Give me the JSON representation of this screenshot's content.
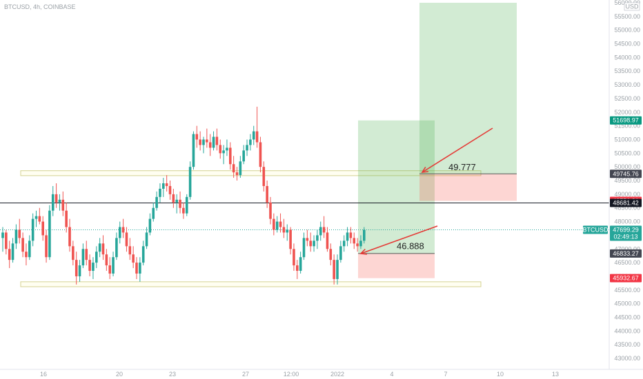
{
  "header": {
    "symbol_line": "BTCUSD, 4h, COINBASE"
  },
  "axis": {
    "currency": "USD"
  },
  "chart_data": {
    "type": "candlestick",
    "title": "",
    "ylim": [
      42800,
      56000
    ],
    "y_ticks": [
      43000,
      43500,
      44000,
      44500,
      45000,
      45500,
      46000,
      46500,
      47000,
      47500,
      48000,
      48500,
      49000,
      49500,
      50000,
      50500,
      51000,
      51500,
      52000,
      52500,
      53000,
      53500,
      54000,
      54500,
      55000,
      55500,
      56000
    ],
    "x_tick_labels": [
      "16",
      "20",
      "23",
      "27",
      "12:00",
      "2022",
      "4",
      "7",
      "10",
      "13"
    ],
    "price_labels": [
      {
        "id": "target",
        "text": "51698.97",
        "price": 51698.97,
        "color": "#089981"
      },
      {
        "id": "level-49745",
        "text": "49745.76",
        "price": 49745.76,
        "color": "#434651"
      },
      {
        "id": "stop-upper",
        "text": "48756.81",
        "price": 48756.81,
        "color": "#f23645"
      },
      {
        "id": "hline",
        "text": "48681.42",
        "price": 48681.42,
        "color": "#131722"
      },
      {
        "id": "current",
        "text": "47699.29",
        "sub": "02:49:13",
        "price": 47699.29,
        "color": "#26a69a"
      },
      {
        "id": "entry",
        "text": "46833.27",
        "price": 46833.27,
        "color": "#434651"
      },
      {
        "id": "stop-lower",
        "text": "45932.67",
        "price": 45932.67,
        "color": "#f23645"
      }
    ],
    "current_symbol_tag": "BTCUSD",
    "annotations": [
      {
        "text": "49.777",
        "price": 49777
      },
      {
        "text": "46.888",
        "price": 46888
      }
    ],
    "zones": [
      {
        "kind": "resistance-rect",
        "from": 49680,
        "to": 49860
      },
      {
        "kind": "support-rect",
        "from": 45620,
        "to": 45800
      }
    ],
    "positions": [
      {
        "name": "lower",
        "entry": 46833.27,
        "target": 51698.97,
        "stop": 45932.67
      },
      {
        "name": "upper",
        "entry": 49745.76,
        "target": 56000,
        "stop": 48756.81
      }
    ],
    "candles": [
      [
        47400,
        47800,
        46900,
        47600
      ],
      [
        47600,
        47700,
        46800,
        47000
      ],
      [
        47000,
        47300,
        46300,
        46600
      ],
      [
        46600,
        47400,
        46500,
        47200
      ],
      [
        47200,
        47900,
        47000,
        47700
      ],
      [
        47700,
        48100,
        47200,
        47400
      ],
      [
        47400,
        47600,
        46700,
        46900
      ],
      [
        46900,
        47200,
        46400,
        46700
      ],
      [
        46700,
        47500,
        46600,
        47300
      ],
      [
        47300,
        48300,
        47100,
        48100
      ],
      [
        48100,
        48400,
        47800,
        48200
      ],
      [
        48200,
        48500,
        47900,
        48000
      ],
      [
        48000,
        48200,
        47300,
        47500
      ],
      [
        47500,
        47700,
        46500,
        46700
      ],
      [
        46700,
        48600,
        46600,
        48400
      ],
      [
        48400,
        49300,
        48200,
        49000
      ],
      [
        49000,
        49400,
        48500,
        48700
      ],
      [
        48700,
        49000,
        48400,
        48800
      ],
      [
        48800,
        49100,
        48200,
        48400
      ],
      [
        48400,
        48700,
        47600,
        47800
      ],
      [
        47800,
        48100,
        46900,
        47100
      ],
      [
        47100,
        47300,
        46400,
        46600
      ],
      [
        46600,
        46900,
        45700,
        46000
      ],
      [
        46000,
        46600,
        45800,
        46400
      ],
      [
        46400,
        47200,
        46300,
        47000
      ],
      [
        47000,
        47300,
        46400,
        46600
      ],
      [
        46600,
        46800,
        46000,
        46200
      ],
      [
        46200,
        46700,
        45900,
        46500
      ],
      [
        46500,
        47100,
        46300,
        46900
      ],
      [
        46900,
        47400,
        46700,
        47200
      ],
      [
        47200,
        47500,
        46600,
        46800
      ],
      [
        46800,
        47000,
        46200,
        46400
      ],
      [
        46400,
        46700,
        45900,
        46100
      ],
      [
        46100,
        46900,
        46000,
        46700
      ],
      [
        46700,
        47600,
        46600,
        47400
      ],
      [
        47400,
        48000,
        47200,
        47800
      ],
      [
        47800,
        48100,
        47400,
        47600
      ],
      [
        47600,
        47800,
        46900,
        47100
      ],
      [
        47100,
        47400,
        46600,
        46800
      ],
      [
        46800,
        47100,
        46300,
        46500
      ],
      [
        46500,
        46700,
        45900,
        46100
      ],
      [
        46100,
        46700,
        45800,
        46500
      ],
      [
        46500,
        47300,
        46400,
        47100
      ],
      [
        47100,
        47800,
        47000,
        47600
      ],
      [
        47600,
        48300,
        47500,
        48100
      ],
      [
        48100,
        48700,
        48000,
        48500
      ],
      [
        48500,
        49100,
        48400,
        48900
      ],
      [
        48900,
        49400,
        48700,
        49200
      ],
      [
        49200,
        49600,
        48900,
        49400
      ],
      [
        49400,
        49700,
        49100,
        49300
      ],
      [
        49300,
        49500,
        48800,
        49000
      ],
      [
        49000,
        49200,
        48500,
        48700
      ],
      [
        48700,
        49000,
        48300,
        48800
      ],
      [
        48800,
        49100,
        48300,
        48500
      ],
      [
        48500,
        48700,
        48100,
        48300
      ],
      [
        48300,
        49000,
        48200,
        48900
      ],
      [
        48900,
        50200,
        48800,
        50000
      ],
      [
        50000,
        51300,
        49900,
        51200
      ],
      [
        51200,
        51500,
        50700,
        51000
      ],
      [
        51000,
        51300,
        50600,
        50800
      ],
      [
        50800,
        51100,
        50500,
        51000
      ],
      [
        51000,
        51400,
        50700,
        50900
      ],
      [
        50900,
        51200,
        50400,
        50700
      ],
      [
        50700,
        51300,
        50600,
        51100
      ],
      [
        51100,
        51400,
        50600,
        50800
      ],
      [
        50800,
        51000,
        50300,
        50500
      ],
      [
        50500,
        50800,
        50100,
        50600
      ],
      [
        50600,
        51000,
        50400,
        50700
      ],
      [
        50700,
        50900,
        49900,
        50100
      ],
      [
        50100,
        50400,
        49600,
        49800
      ],
      [
        49800,
        50000,
        49500,
        49700
      ],
      [
        49700,
        50400,
        49600,
        50200
      ],
      [
        50200,
        50800,
        50100,
        50600
      ],
      [
        50600,
        51000,
        50400,
        50800
      ],
      [
        50800,
        51200,
        50600,
        51000
      ],
      [
        51000,
        51500,
        50800,
        51300
      ],
      [
        51300,
        52200,
        50700,
        50900
      ],
      [
        50900,
        51100,
        49800,
        50000
      ],
      [
        50000,
        50200,
        49100,
        49300
      ],
      [
        49300,
        49500,
        48500,
        48700
      ],
      [
        48700,
        48900,
        47900,
        48100
      ],
      [
        48100,
        48300,
        47500,
        47700
      ],
      [
        47700,
        48200,
        47600,
        48000
      ],
      [
        48000,
        48300,
        47600,
        47800
      ],
      [
        47800,
        48100,
        47400,
        47600
      ],
      [
        47600,
        47900,
        47300,
        47700
      ],
      [
        47700,
        47800,
        46800,
        47000
      ],
      [
        47000,
        47200,
        46200,
        46400
      ],
      [
        46400,
        46600,
        45900,
        46200
      ],
      [
        46200,
        46900,
        46100,
        46700
      ],
      [
        46700,
        47600,
        46600,
        47400
      ],
      [
        47400,
        47700,
        47100,
        47300
      ],
      [
        47300,
        47600,
        46900,
        47100
      ],
      [
        47100,
        47500,
        46900,
        47300
      ],
      [
        47300,
        47700,
        47000,
        47500
      ],
      [
        47500,
        48000,
        47300,
        47800
      ],
      [
        47800,
        48200,
        47400,
        47600
      ],
      [
        47600,
        47800,
        46900,
        47000
      ],
      [
        47000,
        47200,
        46400,
        46600
      ],
      [
        46600,
        46800,
        45700,
        45900
      ],
      [
        45900,
        46800,
        45700,
        46600
      ],
      [
        46600,
        47300,
        46500,
        47100
      ],
      [
        47100,
        47500,
        46900,
        47300
      ],
      [
        47300,
        47800,
        47100,
        47600
      ],
      [
        47600,
        47800,
        47200,
        47400
      ],
      [
        47400,
        47600,
        47000,
        47200
      ],
      [
        47200,
        47400,
        46900,
        47100
      ],
      [
        47100,
        47500,
        47000,
        47300
      ],
      [
        47300,
        47800,
        47200,
        47699.29
      ]
    ]
  }
}
